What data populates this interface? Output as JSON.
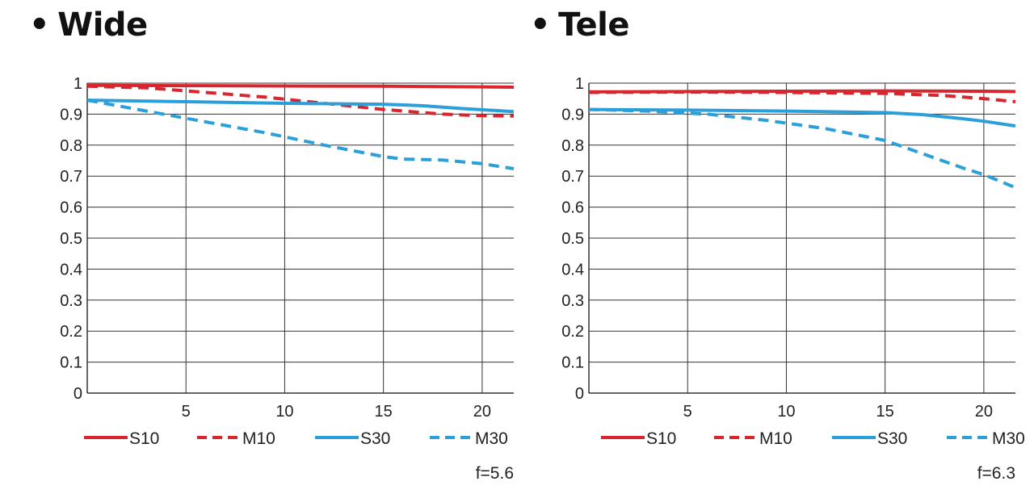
{
  "colors": {
    "s10": "#d7262e",
    "m10": "#d7262e",
    "s30": "#2b9fd9",
    "m30": "#2b9fd9",
    "grid": "#333333"
  },
  "chart_data": [
    {
      "type": "line",
      "title": "Wide",
      "xlabel": "",
      "ylabel": "",
      "xlim": [
        0,
        21.6
      ],
      "ylim": [
        0,
        1
      ],
      "xticks": [
        5,
        10,
        15,
        20
      ],
      "yticks": [
        0,
        0.1,
        0.2,
        0.3,
        0.4,
        0.5,
        0.6,
        0.7,
        0.8,
        0.9,
        1
      ],
      "ytick_labels": [
        "0",
        "0.1",
        "0.2",
        "0.3",
        "0.4",
        "0.5",
        "0.6",
        "0.7",
        "0.8",
        "0.9",
        "1"
      ],
      "grid": true,
      "legend_position": "bottom",
      "note": "f=5.6",
      "series": [
        {
          "name": "S10",
          "style": "solid",
          "color": "#d7262e",
          "x": [
            0,
            5,
            10,
            15,
            20,
            21.6
          ],
          "y": [
            0.993,
            0.992,
            0.991,
            0.99,
            0.988,
            0.987
          ]
        },
        {
          "name": "M10",
          "style": "dashed",
          "color": "#d7262e",
          "x": [
            0,
            3,
            6,
            9,
            12,
            15,
            18,
            20,
            21.6
          ],
          "y": [
            0.99,
            0.985,
            0.97,
            0.955,
            0.935,
            0.915,
            0.9,
            0.895,
            0.894
          ]
        },
        {
          "name": "S30",
          "style": "solid",
          "color": "#2b9fd9",
          "x": [
            0,
            5,
            10,
            15,
            17,
            19,
            21.6
          ],
          "y": [
            0.945,
            0.94,
            0.935,
            0.932,
            0.927,
            0.918,
            0.908
          ]
        },
        {
          "name": "M30",
          "style": "dashed",
          "color": "#2b9fd9",
          "x": [
            0,
            3,
            6,
            9,
            12,
            15,
            16,
            18,
            20,
            21.6
          ],
          "y": [
            0.945,
            0.91,
            0.875,
            0.84,
            0.8,
            0.763,
            0.755,
            0.752,
            0.74,
            0.724
          ]
        }
      ]
    },
    {
      "type": "line",
      "title": "Tele",
      "xlabel": "",
      "ylabel": "",
      "xlim": [
        0,
        21.6
      ],
      "ylim": [
        0,
        1
      ],
      "xticks": [
        5,
        10,
        15,
        20
      ],
      "yticks": [
        0,
        0.1,
        0.2,
        0.3,
        0.4,
        0.5,
        0.6,
        0.7,
        0.8,
        0.9,
        1
      ],
      "ytick_labels": [
        "0",
        "0.1",
        "0.2",
        "0.3",
        "0.4",
        "0.5",
        "0.6",
        "0.7",
        "0.8",
        "0.9",
        "1"
      ],
      "grid": true,
      "legend_position": "bottom",
      "note": "f=6.3",
      "series": [
        {
          "name": "S10",
          "style": "solid",
          "color": "#d7262e",
          "x": [
            0,
            5,
            10,
            15,
            20,
            21.6
          ],
          "y": [
            0.972,
            0.973,
            0.974,
            0.975,
            0.974,
            0.973
          ]
        },
        {
          "name": "M10",
          "style": "dashed",
          "color": "#d7262e",
          "x": [
            0,
            5,
            10,
            15,
            18,
            20,
            21.6
          ],
          "y": [
            0.97,
            0.971,
            0.97,
            0.967,
            0.96,
            0.95,
            0.94
          ]
        },
        {
          "name": "S30",
          "style": "solid",
          "color": "#2b9fd9",
          "x": [
            0,
            5,
            10,
            15,
            17,
            19,
            20,
            21.6
          ],
          "y": [
            0.915,
            0.913,
            0.91,
            0.905,
            0.898,
            0.885,
            0.877,
            0.862
          ]
        },
        {
          "name": "M30",
          "style": "dashed",
          "color": "#2b9fd9",
          "x": [
            0,
            3,
            6,
            9,
            12,
            15,
            17,
            19,
            20,
            21.6
          ],
          "y": [
            0.915,
            0.91,
            0.9,
            0.88,
            0.853,
            0.815,
            0.77,
            0.725,
            0.705,
            0.663
          ]
        }
      ]
    }
  ]
}
